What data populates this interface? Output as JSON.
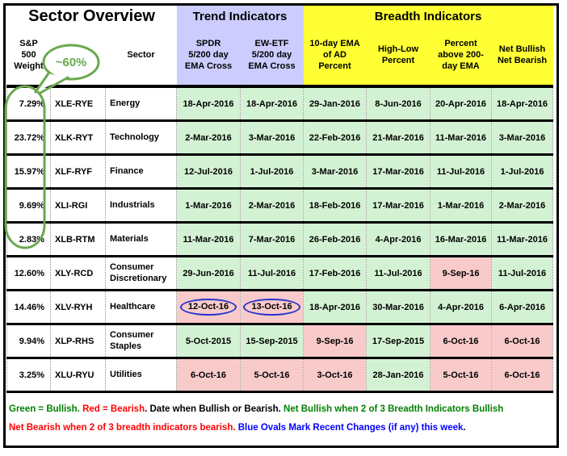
{
  "colors": {
    "bullish_cell": "#d3f2d3",
    "bearish_cell": "#f9caca",
    "trend_panel": "#ccccff",
    "breadth_panel": "#ffff33",
    "annotation_green": "#6aa84f",
    "recent_change_oval_blue": "#2233cc",
    "legend_green": "#008000",
    "legend_red": "#ff0000",
    "legend_blue": "#0000ff"
  },
  "annotations": {
    "bubble_label": "~60%"
  },
  "chart_data": {
    "type": "table",
    "title": "Sector Overview",
    "trend_group_label": "Trend Indicators",
    "breadth_group_label": "Breadth Indicators",
    "weight_header": "S&P\n500\nWeight",
    "sector_header": "Sector",
    "date_columns": [
      "SPDR\n5/200 day\nEMA Cross",
      "EW-ETF\n5/200 day\nEMA Cross",
      "10-day EMA\nof AD\nPercent",
      "High-Low\nPercent",
      "Percent\nabove 200-\nday EMA",
      "Net Bullish\nNet Bearish"
    ],
    "rows": [
      {
        "weight": "7.29%",
        "symbol": "XLE-RYE",
        "sector": "Energy",
        "cells": [
          {
            "date": "18-Apr-2016",
            "state": "bullish"
          },
          {
            "date": "18-Apr-2016",
            "state": "bullish"
          },
          {
            "date": "29-Jan-2016",
            "state": "bullish"
          },
          {
            "date": "8-Jun-2016",
            "state": "bullish"
          },
          {
            "date": "20-Apr-2016",
            "state": "bullish"
          },
          {
            "date": "18-Apr-2016",
            "state": "bullish"
          }
        ]
      },
      {
        "weight": "23.72%",
        "symbol": "XLK-RYT",
        "sector": "Technology",
        "cells": [
          {
            "date": "2-Mar-2016",
            "state": "bullish"
          },
          {
            "date": "3-Mar-2016",
            "state": "bullish"
          },
          {
            "date": "22-Feb-2016",
            "state": "bullish"
          },
          {
            "date": "21-Mar-2016",
            "state": "bullish"
          },
          {
            "date": "11-Mar-2016",
            "state": "bullish"
          },
          {
            "date": "3-Mar-2016",
            "state": "bullish"
          }
        ]
      },
      {
        "weight": "15.97%",
        "symbol": "XLF-RYF",
        "sector": "Finance",
        "cells": [
          {
            "date": "12-Jul-2016",
            "state": "bullish"
          },
          {
            "date": "1-Jul-2016",
            "state": "bullish"
          },
          {
            "date": "3-Mar-2016",
            "state": "bullish"
          },
          {
            "date": "17-Mar-2016",
            "state": "bullish"
          },
          {
            "date": "11-Jul-2016",
            "state": "bullish"
          },
          {
            "date": "1-Jul-2016",
            "state": "bullish"
          }
        ]
      },
      {
        "weight": "9.69%",
        "symbol": "XLI-RGI",
        "sector": "Industrials",
        "cells": [
          {
            "date": "1-Mar-2016",
            "state": "bullish"
          },
          {
            "date": "2-Mar-2016",
            "state": "bullish"
          },
          {
            "date": "18-Feb-2016",
            "state": "bullish"
          },
          {
            "date": "17-Mar-2016",
            "state": "bullish"
          },
          {
            "date": "1-Mar-2016",
            "state": "bullish"
          },
          {
            "date": "2-Mar-2016",
            "state": "bullish"
          }
        ]
      },
      {
        "weight": "2.83%",
        "symbol": "XLB-RTM",
        "sector": "Materials",
        "cells": [
          {
            "date": "11-Mar-2016",
            "state": "bullish"
          },
          {
            "date": "7-Mar-2016",
            "state": "bullish"
          },
          {
            "date": "26-Feb-2016",
            "state": "bullish"
          },
          {
            "date": "4-Apr-2016",
            "state": "bullish"
          },
          {
            "date": "16-Mar-2016",
            "state": "bullish"
          },
          {
            "date": "11-Mar-2016",
            "state": "bullish"
          }
        ]
      },
      {
        "weight": "12.60%",
        "symbol": "XLY-RCD",
        "sector": "Consumer Discretionary",
        "cells": [
          {
            "date": "29-Jun-2016",
            "state": "bullish"
          },
          {
            "date": "11-Jul-2016",
            "state": "bullish"
          },
          {
            "date": "17-Feb-2016",
            "state": "bullish"
          },
          {
            "date": "11-Jul-2016",
            "state": "bullish"
          },
          {
            "date": "9-Sep-16",
            "state": "bearish"
          },
          {
            "date": "11-Jul-2016",
            "state": "bullish"
          }
        ]
      },
      {
        "weight": "14.46%",
        "symbol": "XLV-RYH",
        "sector": "Healthcare",
        "cells": [
          {
            "date": "12-Oct-16",
            "state": "bearish",
            "oval": true
          },
          {
            "date": "13-Oct-16",
            "state": "bearish",
            "oval": true
          },
          {
            "date": "18-Apr-2016",
            "state": "bullish"
          },
          {
            "date": "30-Mar-2016",
            "state": "bullish"
          },
          {
            "date": "4-Apr-2016",
            "state": "bullish"
          },
          {
            "date": "6-Apr-2016",
            "state": "bullish"
          }
        ]
      },
      {
        "weight": "9.94%",
        "symbol": "XLP-RHS",
        "sector": "Consumer Staples",
        "cells": [
          {
            "date": "5-Oct-2015",
            "state": "bullish"
          },
          {
            "date": "15-Sep-2015",
            "state": "bullish"
          },
          {
            "date": "9-Sep-16",
            "state": "bearish"
          },
          {
            "date": "17-Sep-2015",
            "state": "bullish"
          },
          {
            "date": "6-Oct-16",
            "state": "bearish"
          },
          {
            "date": "6-Oct-16",
            "state": "bearish"
          }
        ]
      },
      {
        "weight": "3.25%",
        "symbol": "XLU-RYU",
        "sector": "Utilities",
        "cells": [
          {
            "date": "6-Oct-16",
            "state": "bearish"
          },
          {
            "date": "5-Oct-16",
            "state": "bearish"
          },
          {
            "date": "3-Oct-16",
            "state": "bearish"
          },
          {
            "date": "28-Jan-2016",
            "state": "bullish"
          },
          {
            "date": "5-Oct-16",
            "state": "bearish"
          },
          {
            "date": "6-Oct-16",
            "state": "bearish"
          }
        ]
      }
    ]
  },
  "footer": {
    "line1": [
      {
        "text": "Green = Bullish.",
        "color": "#008000"
      },
      {
        "text": " ",
        "color": "#000000"
      },
      {
        "text": "Red = Bearish",
        "color": "#ff0000"
      },
      {
        "text": ". ",
        "color": "#000000"
      },
      {
        "text": "Date when Bullish or Bearish. ",
        "color": "#000000"
      },
      {
        "text": "Net Bullish when 2 of 3 Breadth Indicators Bullish",
        "color": "#008000"
      }
    ],
    "line2": [
      {
        "text": "Net Bearish when 2 of 3 breadth indicators bearish. ",
        "color": "#ff0000"
      },
      {
        "text": "Blue Ovals Mark Recent Changes (if any) this week",
        "color": "#0000ff"
      },
      {
        "text": ".",
        "color": "#000000"
      }
    ]
  }
}
